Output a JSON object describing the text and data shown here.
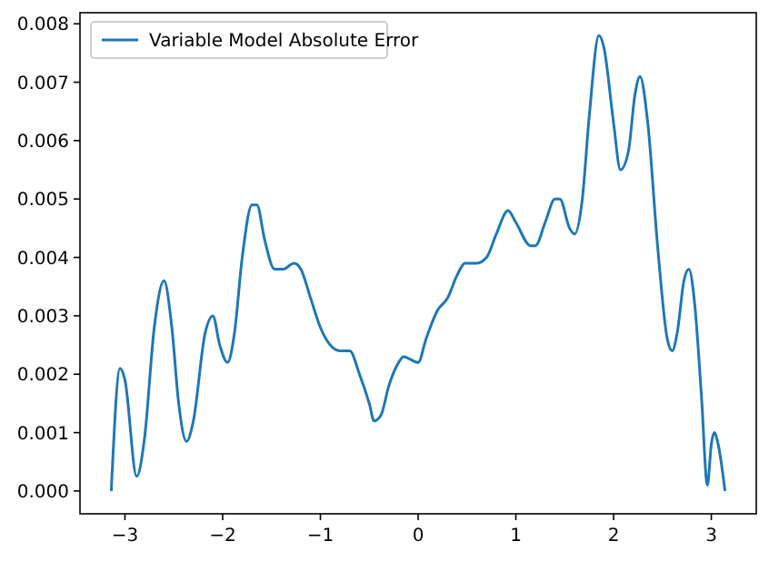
{
  "chart_data": {
    "type": "line",
    "x": [
      -3.14,
      -3.05,
      -3.0,
      -2.88,
      -2.8,
      -2.7,
      -2.6,
      -2.52,
      -2.45,
      -2.37,
      -2.3,
      -2.18,
      -2.1,
      -2.03,
      -1.95,
      -1.88,
      -1.8,
      -1.7,
      -1.65,
      -1.57,
      -1.47,
      -1.38,
      -1.27,
      -1.2,
      -1.1,
      -1.0,
      -0.9,
      -0.8,
      -0.7,
      -0.6,
      -0.5,
      -0.45,
      -0.38,
      -0.3,
      -0.2,
      -0.15,
      0.0,
      0.08,
      0.2,
      0.3,
      0.4,
      0.48,
      0.6,
      0.7,
      0.8,
      0.92,
      1.0,
      1.15,
      1.2,
      1.3,
      1.4,
      1.45,
      1.55,
      1.6,
      1.68,
      1.75,
      1.85,
      1.9,
      2.0,
      2.07,
      2.15,
      2.22,
      2.27,
      2.35,
      2.45,
      2.55,
      2.6,
      2.65,
      2.72,
      2.77,
      2.83,
      2.9,
      2.96,
      3.0,
      3.03,
      3.07,
      3.14
    ],
    "series": [
      {
        "name": "Variable Model Absolute Error",
        "color": "#1f77b4",
        "values": [
          0,
          0.0021,
          0.0019,
          0.00025,
          0.0009,
          0.0028,
          0.0036,
          0.0028,
          0.0015,
          0.00085,
          0.0012,
          0.0027,
          0.003,
          0.0025,
          0.0022,
          0.0027,
          0.004,
          0.0049,
          0.0049,
          0.0043,
          0.0038,
          0.0038,
          0.0039,
          0.0038,
          0.0033,
          0.0028,
          0.0025,
          0.0024,
          0.0024,
          0.002,
          0.0015,
          0.0012,
          0.0013,
          0.0018,
          0.0022,
          0.0023,
          0.0022,
          0.0026,
          0.0031,
          0.0033,
          0.0037,
          0.0039,
          0.0039,
          0.004,
          0.0044,
          0.0048,
          0.0046,
          0.0042,
          0.0042,
          0.0046,
          0.005,
          0.005,
          0.0045,
          0.0044,
          0.005,
          0.0064,
          0.0078,
          0.0076,
          0.0063,
          0.0055,
          0.0058,
          0.0068,
          0.0071,
          0.0063,
          0.0042,
          0.0026,
          0.0024,
          0.0027,
          0.0036,
          0.0038,
          0.0032,
          0.0016,
          0.0001,
          0.0008,
          0.001,
          0.0008,
          0
        ]
      }
    ],
    "xlim": [
      -3.46,
      3.46
    ],
    "xticks": [
      {
        "value": -3,
        "label": "−3"
      },
      {
        "value": -2,
        "label": "−2"
      },
      {
        "value": -1,
        "label": "−1"
      },
      0,
      1,
      2,
      3
    ],
    "ylim": [
      -0.00039,
      0.00819
    ],
    "yticks": [
      {
        "value": 0,
        "label": "0.000"
      },
      {
        "value": 0.001,
        "label": "0.001"
      },
      {
        "value": 0.002,
        "label": "0.002"
      },
      {
        "value": 0.003,
        "label": "0.003"
      },
      {
        "value": 0.004,
        "label": "0.004"
      },
      {
        "value": 0.005,
        "label": "0.005"
      },
      {
        "value": 0.006,
        "label": "0.006"
      },
      {
        "value": 0.007,
        "label": "0.007"
      },
      {
        "value": 0.008,
        "label": "0.008"
      }
    ],
    "legend": "top left",
    "grid": false,
    "line_style": "solid",
    "marker": "none"
  }
}
